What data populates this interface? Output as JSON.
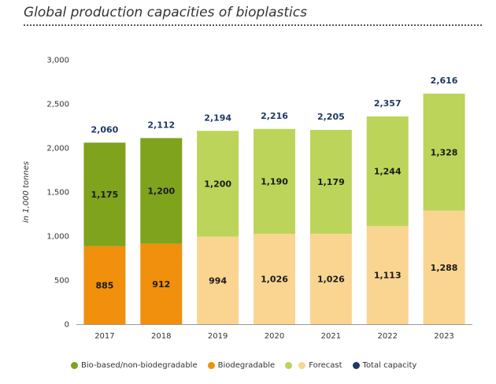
{
  "chart_data": {
    "type": "bar",
    "stacked": true,
    "title": "Global production capacities of bioplastics",
    "ylabel": "in 1,000 tonnes",
    "xlabel": "",
    "ylim": [
      0,
      3000
    ],
    "yticks": [
      0,
      500,
      1000,
      1500,
      2000,
      2500,
      3000
    ],
    "ytick_labels": [
      "0",
      "500",
      "1,000",
      "1,500",
      "2,000",
      "2,500",
      "3,000"
    ],
    "grid": false,
    "categories": [
      "2017",
      "2018",
      "2019",
      "2020",
      "2021",
      "2022",
      "2023"
    ],
    "lower_values": [
      885,
      912,
      994,
      1026,
      1026,
      1113,
      1288
    ],
    "lower_labels": [
      "885",
      "912",
      "994",
      "1,026",
      "1,026",
      "1,113",
      "1,288"
    ],
    "upper_values": [
      1175,
      1200,
      1200,
      1190,
      1179,
      1244,
      1328
    ],
    "upper_labels": [
      "1,175",
      "1,200",
      "1,200",
      "1,190",
      "1,179",
      "1,244",
      "1,328"
    ],
    "totals": [
      2060,
      2112,
      2194,
      2216,
      2205,
      2357,
      2616
    ],
    "total_labels": [
      "2,060",
      "2,112",
      "2,194",
      "2,216",
      "2,205",
      "2,357",
      "2,616"
    ],
    "forecast": [
      false,
      false,
      true,
      true,
      true,
      true,
      true
    ],
    "colors": {
      "bio_based_non_biodegradable": "#7fa31c",
      "biodegradable": "#f0900c",
      "forecast_upper": "#bcd45a",
      "forecast_lower": "#f9d591",
      "total": "#1f3864"
    },
    "legend_position": "bottom",
    "legend": [
      {
        "label": "Bio-based/non-biodegradable",
        "color": "#7fa31c"
      },
      {
        "label": "Biodegradable",
        "color": "#f0900c"
      },
      {
        "label": "",
        "color": "#bcd45a"
      },
      {
        "label": "Forecast",
        "color": "#f9d591"
      },
      {
        "label": "Total capacity",
        "color": "#1f3864"
      }
    ]
  }
}
